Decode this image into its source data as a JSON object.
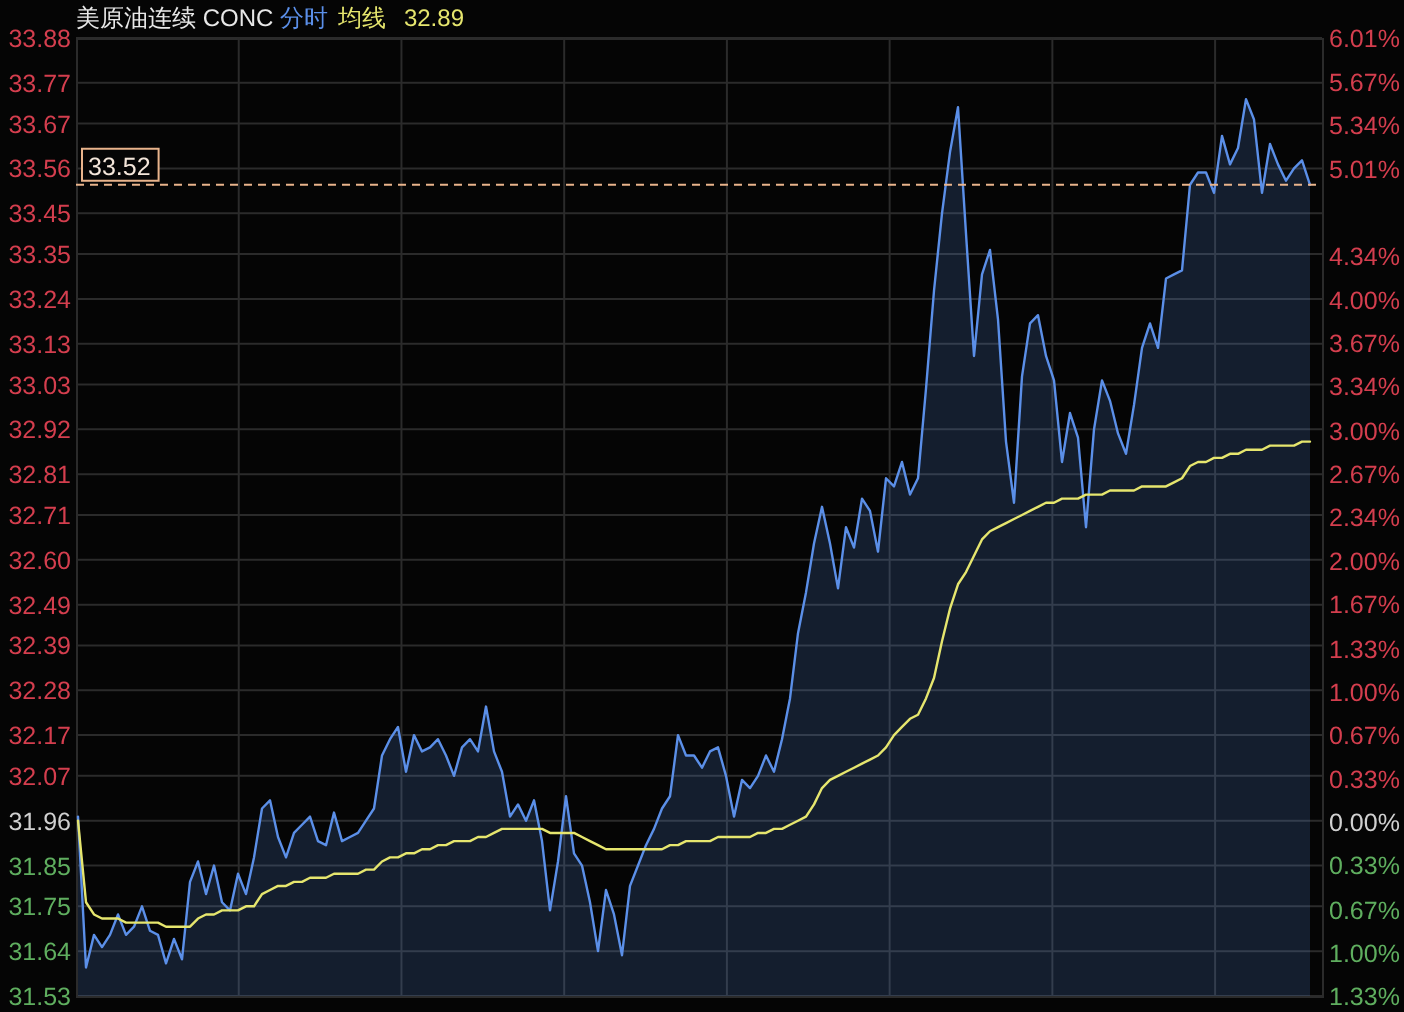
{
  "chart_data": {
    "type": "line",
    "title": "美原油连续 CONC",
    "categories": [
      null,
      null,
      null,
      null,
      null,
      null,
      null,
      null,
      null,
      null,
      null,
      null,
      null,
      null,
      null,
      null,
      null,
      null,
      null,
      null,
      null,
      null,
      null,
      null,
      null,
      null,
      null,
      null,
      null,
      null,
      null,
      null,
      null,
      null,
      null,
      null,
      null,
      null,
      null,
      null,
      null,
      null,
      null,
      null,
      null,
      null,
      null,
      null,
      null,
      null,
      null,
      null,
      null,
      null,
      null,
      null,
      null,
      null,
      null,
      null,
      null,
      null,
      null,
      null,
      null,
      null,
      null,
      null,
      null,
      null,
      null,
      null,
      null,
      null,
      null,
      null,
      null,
      null,
      null,
      null,
      null,
      null,
      null,
      null,
      null,
      null,
      null,
      null,
      null,
      null,
      null,
      null,
      null,
      null,
      null,
      null,
      null,
      null,
      null,
      null,
      null,
      null,
      null,
      null,
      null,
      null,
      null,
      null,
      null,
      null,
      null,
      null,
      null,
      null,
      null,
      null,
      null,
      null,
      null,
      null,
      null,
      null,
      null,
      null,
      null,
      null,
      null,
      null,
      null,
      null,
      null,
      null,
      null,
      null,
      null,
      null,
      null,
      null,
      null,
      null,
      null,
      null,
      null,
      null,
      null,
      null,
      null,
      null,
      null,
      null,
      null,
      null,
      null,
      null,
      null
    ],
    "series": [
      {
        "name": "分时",
        "type": "area",
        "color": "#5b8fe8",
        "values": [
          31.97,
          31.6,
          31.68,
          31.65,
          31.68,
          31.73,
          31.68,
          31.7,
          31.75,
          31.69,
          31.68,
          31.61,
          31.67,
          31.62,
          31.81,
          31.86,
          31.78,
          31.85,
          31.76,
          31.74,
          31.83,
          31.78,
          31.87,
          31.99,
          32.01,
          31.92,
          31.87,
          31.93,
          31.95,
          31.97,
          31.91,
          31.9,
          31.98,
          31.91,
          31.92,
          31.93,
          31.96,
          31.99,
          32.12,
          32.16,
          32.19,
          32.08,
          32.17,
          32.13,
          32.14,
          32.16,
          32.12,
          32.07,
          32.14,
          32.16,
          32.13,
          32.24,
          32.13,
          32.08,
          31.97,
          32.0,
          31.96,
          32.01,
          31.91,
          31.74,
          31.86,
          32.02,
          31.88,
          31.85,
          31.76,
          31.64,
          31.79,
          31.73,
          31.63,
          31.8,
          31.85,
          31.9,
          31.94,
          31.99,
          32.02,
          32.17,
          32.12,
          32.12,
          32.09,
          32.13,
          32.14,
          32.07,
          31.97,
          32.06,
          32.04,
          32.07,
          32.12,
          32.08,
          32.16,
          32.26,
          32.42,
          32.52,
          32.64,
          32.73,
          32.64,
          32.53,
          32.68,
          32.63,
          32.75,
          32.72,
          32.62,
          32.8,
          32.78,
          32.84,
          32.76,
          32.8,
          33.02,
          33.26,
          33.45,
          33.6,
          33.71,
          33.4,
          33.1,
          33.3,
          33.36,
          33.19,
          32.89,
          32.74,
          33.05,
          33.18,
          33.2,
          33.1,
          33.04,
          32.84,
          32.96,
          32.9,
          32.68,
          32.92,
          33.04,
          32.99,
          32.91,
          32.86,
          32.98,
          33.12,
          33.18,
          33.12,
          33.29,
          33.3,
          33.31,
          33.52,
          33.55,
          33.55,
          33.5,
          33.64,
          33.57,
          33.61,
          33.73,
          33.68,
          33.5,
          33.62,
          33.57,
          33.53,
          33.56,
          33.58,
          33.52
        ]
      },
      {
        "name": "均线",
        "color": "#e6e66e",
        "values": [
          31.96,
          31.76,
          31.73,
          31.72,
          31.72,
          31.72,
          31.71,
          31.71,
          31.71,
          31.71,
          31.71,
          31.7,
          31.7,
          31.7,
          31.7,
          31.72,
          31.73,
          31.73,
          31.74,
          31.74,
          31.74,
          31.75,
          31.75,
          31.78,
          31.79,
          31.8,
          31.8,
          31.81,
          31.81,
          31.82,
          31.82,
          31.82,
          31.83,
          31.83,
          31.83,
          31.83,
          31.84,
          31.84,
          31.86,
          31.87,
          31.87,
          31.88,
          31.88,
          31.89,
          31.89,
          31.9,
          31.9,
          31.91,
          31.91,
          31.91,
          31.92,
          31.92,
          31.93,
          31.94,
          31.94,
          31.94,
          31.94,
          31.94,
          31.94,
          31.93,
          31.93,
          31.93,
          31.93,
          31.92,
          31.91,
          31.9,
          31.89,
          31.89,
          31.89,
          31.89,
          31.89,
          31.89,
          31.89,
          31.89,
          31.9,
          31.9,
          31.91,
          31.91,
          31.91,
          31.91,
          31.92,
          31.92,
          31.92,
          31.92,
          31.92,
          31.93,
          31.93,
          31.94,
          31.94,
          31.95,
          31.96,
          31.97,
          32.0,
          32.04,
          32.06,
          32.07,
          32.08,
          32.09,
          32.1,
          32.11,
          32.12,
          32.14,
          32.17,
          32.19,
          32.21,
          32.22,
          32.26,
          32.31,
          32.4,
          32.48,
          32.54,
          32.57,
          32.61,
          32.65,
          32.67,
          32.68,
          32.69,
          32.7,
          32.71,
          32.72,
          32.73,
          32.74,
          32.74,
          32.75,
          32.75,
          32.75,
          32.76,
          32.76,
          32.76,
          32.77,
          32.77,
          32.77,
          32.77,
          32.78,
          32.78,
          32.78,
          32.78,
          32.79,
          32.8,
          32.83,
          32.84,
          32.84,
          32.85,
          32.85,
          32.86,
          32.86,
          32.87,
          32.87,
          32.87,
          32.88,
          32.88,
          32.88,
          32.88,
          32.89,
          32.89
        ]
      }
    ],
    "ylim": [
      31.53,
      33.88
    ],
    "yticks": [
      31.53,
      31.64,
      31.75,
      31.85,
      31.96,
      32.07,
      32.17,
      32.28,
      32.39,
      32.49,
      {
        "value": 32.6,
        "label": "32.60"
      },
      32.71,
      32.81,
      32.92,
      33.03,
      33.13,
      33.24,
      33.35,
      33.45,
      33.56,
      33.67,
      33.77,
      33.88
    ],
    "y2lim": [
      -1.33,
      6.01
    ],
    "y2ticks": [
      {
        "value": -1.33,
        "label": "1.33%"
      },
      {
        "value": -1.0,
        "label": "1.00%"
      },
      {
        "value": -0.67,
        "label": "0.67%"
      },
      {
        "value": -0.33,
        "label": "0.33%"
      },
      {
        "value": 0,
        "label": "0.00%"
      },
      {
        "value": 0.33,
        "label": "0.33%"
      },
      {
        "value": 0.67,
        "label": "0.67%"
      },
      {
        "value": 1.0,
        "label": "1.00%"
      },
      {
        "value": 1.33,
        "label": "1.33%"
      },
      {
        "value": 1.67,
        "label": "1.67%"
      },
      {
        "value": 2.0,
        "label": "2.00%"
      },
      {
        "value": 2.34,
        "label": "2.34%"
      },
      {
        "value": 2.67,
        "label": "2.67%"
      },
      {
        "value": 3.0,
        "label": "3.00%"
      },
      {
        "value": 3.34,
        "label": "3.34%"
      },
      {
        "value": 3.67,
        "label": "3.67%"
      },
      {
        "value": 4.0,
        "label": "4.00%"
      },
      {
        "value": 4.34,
        "label": "4.34%"
      },
      {
        "value": 5.01,
        "label": "5.01%"
      },
      {
        "value": 5.34,
        "label": "5.34%"
      },
      {
        "value": 5.67,
        "label": "5.67%"
      },
      {
        "value": 6.01,
        "label": "6.01%"
      }
    ],
    "ref_lines": [
      {
        "axis": "y",
        "value": 33.52,
        "label": "33.52",
        "color": "#e9b48c",
        "line_style": "dashed"
      }
    ],
    "annotations": [
      "32.89"
    ],
    "grid": true,
    "legend": "top left"
  }
}
